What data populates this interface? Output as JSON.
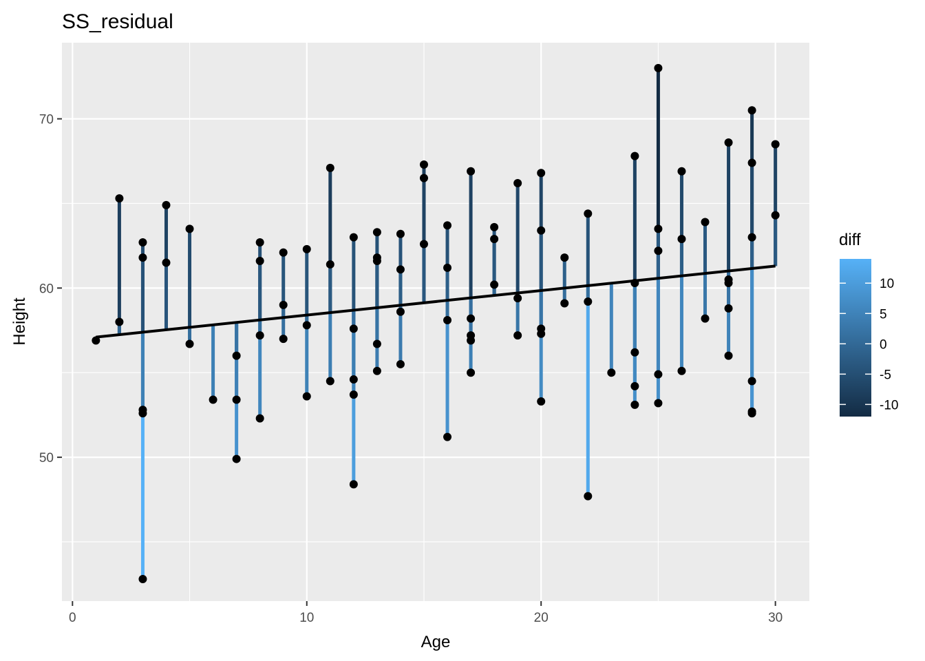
{
  "chart_data": {
    "type": "scatter",
    "title": "SS_residual",
    "xlabel": "Age",
    "ylabel": "Height",
    "xlim": [
      -0.45,
      31.45
    ],
    "ylim": [
      41.5,
      74.5
    ],
    "x_ticks": [
      0,
      10,
      20,
      30
    ],
    "x_tick_labels": [
      "0",
      "10",
      "20",
      "30"
    ],
    "y_ticks": [
      50,
      60,
      70
    ],
    "y_tick_labels": [
      "50",
      "60",
      "70"
    ],
    "grid": true,
    "background": "#ebebeb",
    "regression_line": {
      "x": [
        1,
        30
      ],
      "y": [
        57.1,
        61.3
      ]
    },
    "legend": {
      "title": "diff",
      "position": "right",
      "labels": [
        "10",
        "5",
        "0",
        "-5",
        "-10"
      ],
      "values": [
        10,
        5,
        0,
        -5,
        -10
      ],
      "range": [
        -12,
        14
      ],
      "low_color": "#132b43",
      "high_color": "#56b1f7"
    },
    "points": [
      {
        "x": 1,
        "y": 56.9
      },
      {
        "x": 2,
        "y": 65.3
      },
      {
        "x": 2,
        "y": 58.0
      },
      {
        "x": 3,
        "y": 62.7
      },
      {
        "x": 3,
        "y": 61.8
      },
      {
        "x": 3,
        "y": 52.8
      },
      {
        "x": 3,
        "y": 52.6
      },
      {
        "x": 3,
        "y": 42.8
      },
      {
        "x": 4,
        "y": 64.9
      },
      {
        "x": 4,
        "y": 61.5
      },
      {
        "x": 5,
        "y": 63.5
      },
      {
        "x": 5,
        "y": 56.7
      },
      {
        "x": 6,
        "y": 53.4
      },
      {
        "x": 7,
        "y": 56.0
      },
      {
        "x": 7,
        "y": 53.4
      },
      {
        "x": 7,
        "y": 49.9
      },
      {
        "x": 8,
        "y": 62.7
      },
      {
        "x": 8,
        "y": 61.6
      },
      {
        "x": 8,
        "y": 57.2
      },
      {
        "x": 8,
        "y": 52.3
      },
      {
        "x": 9,
        "y": 62.1
      },
      {
        "x": 9,
        "y": 59.0
      },
      {
        "x": 9,
        "y": 57.0
      },
      {
        "x": 10,
        "y": 62.3
      },
      {
        "x": 10,
        "y": 57.8
      },
      {
        "x": 10,
        "y": 53.6
      },
      {
        "x": 11,
        "y": 67.1
      },
      {
        "x": 11,
        "y": 61.4
      },
      {
        "x": 11,
        "y": 54.5
      },
      {
        "x": 12,
        "y": 63.0
      },
      {
        "x": 12,
        "y": 57.6
      },
      {
        "x": 12,
        "y": 54.6
      },
      {
        "x": 12,
        "y": 53.7
      },
      {
        "x": 12,
        "y": 48.4
      },
      {
        "x": 13,
        "y": 63.3
      },
      {
        "x": 13,
        "y": 61.8
      },
      {
        "x": 13,
        "y": 61.6
      },
      {
        "x": 13,
        "y": 56.7
      },
      {
        "x": 13,
        "y": 55.1
      },
      {
        "x": 14,
        "y": 63.2
      },
      {
        "x": 14,
        "y": 61.1
      },
      {
        "x": 14,
        "y": 58.6
      },
      {
        "x": 14,
        "y": 55.5
      },
      {
        "x": 15,
        "y": 67.3
      },
      {
        "x": 15,
        "y": 66.5
      },
      {
        "x": 15,
        "y": 62.6
      },
      {
        "x": 16,
        "y": 63.7
      },
      {
        "x": 16,
        "y": 61.2
      },
      {
        "x": 16,
        "y": 58.1
      },
      {
        "x": 16,
        "y": 51.2
      },
      {
        "x": 17,
        "y": 66.9
      },
      {
        "x": 17,
        "y": 58.2
      },
      {
        "x": 17,
        "y": 57.2
      },
      {
        "x": 17,
        "y": 56.9
      },
      {
        "x": 17,
        "y": 55.0
      },
      {
        "x": 18,
        "y": 63.6
      },
      {
        "x": 18,
        "y": 62.9
      },
      {
        "x": 18,
        "y": 60.2
      },
      {
        "x": 19,
        "y": 66.2
      },
      {
        "x": 19,
        "y": 59.4
      },
      {
        "x": 19,
        "y": 57.2
      },
      {
        "x": 20,
        "y": 66.8
      },
      {
        "x": 20,
        "y": 63.4
      },
      {
        "x": 20,
        "y": 57.6
      },
      {
        "x": 20,
        "y": 57.3
      },
      {
        "x": 20,
        "y": 53.3
      },
      {
        "x": 21,
        "y": 61.8
      },
      {
        "x": 21,
        "y": 59.1
      },
      {
        "x": 22,
        "y": 64.4
      },
      {
        "x": 22,
        "y": 59.2
      },
      {
        "x": 22,
        "y": 47.7
      },
      {
        "x": 23,
        "y": 55.0
      },
      {
        "x": 24,
        "y": 67.8
      },
      {
        "x": 24,
        "y": 60.3
      },
      {
        "x": 24,
        "y": 56.2
      },
      {
        "x": 24,
        "y": 54.2
      },
      {
        "x": 24,
        "y": 53.1
      },
      {
        "x": 25,
        "y": 73.0
      },
      {
        "x": 25,
        "y": 63.5
      },
      {
        "x": 25,
        "y": 62.2
      },
      {
        "x": 25,
        "y": 54.9
      },
      {
        "x": 25,
        "y": 53.2
      },
      {
        "x": 26,
        "y": 66.9
      },
      {
        "x": 26,
        "y": 62.9
      },
      {
        "x": 26,
        "y": 55.1
      },
      {
        "x": 27,
        "y": 63.9
      },
      {
        "x": 27,
        "y": 58.2
      },
      {
        "x": 28,
        "y": 68.6
      },
      {
        "x": 28,
        "y": 60.5
      },
      {
        "x": 28,
        "y": 60.3
      },
      {
        "x": 28,
        "y": 58.8
      },
      {
        "x": 28,
        "y": 56.0
      },
      {
        "x": 29,
        "y": 70.5
      },
      {
        "x": 29,
        "y": 67.4
      },
      {
        "x": 29,
        "y": 63.0
      },
      {
        "x": 29,
        "y": 54.5
      },
      {
        "x": 29,
        "y": 52.7
      },
      {
        "x": 29,
        "y": 52.6
      },
      {
        "x": 30,
        "y": 68.5
      },
      {
        "x": 30,
        "y": 64.3
      }
    ]
  }
}
